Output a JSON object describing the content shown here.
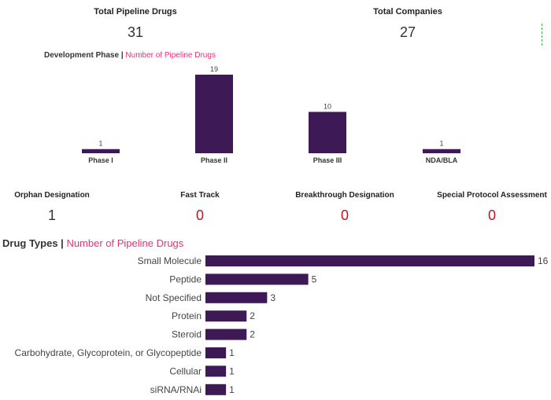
{
  "summary": {
    "total_pipeline_drugs": {
      "label": "Total Pipeline Drugs",
      "value": "31"
    },
    "total_companies": {
      "label": "Total Companies",
      "value": "27"
    }
  },
  "designations": [
    {
      "label": "Orphan Designation",
      "value": "1",
      "color": "#333333"
    },
    {
      "label": "Fast Track",
      "value": "0",
      "color": "#c0141e"
    },
    {
      "label": "Breakthrough Designation",
      "value": "0",
      "color": "#c0141e"
    },
    {
      "label": "Special Protocol Assessment",
      "value": "0",
      "color": "#c0141e"
    }
  ],
  "colors": {
    "bar": "#3d1a55",
    "accent": "#e6317a"
  },
  "chart_data": [
    {
      "type": "bar",
      "title": "Development Phase",
      "subtitle": "Number of Pipeline Drugs",
      "categories": [
        "Phase I",
        "Phase II",
        "Phase III",
        "NDA/BLA"
      ],
      "values": [
        1,
        19,
        10,
        1
      ],
      "ylim": [
        0,
        19
      ],
      "xlabel": "",
      "ylabel": ""
    },
    {
      "type": "bar",
      "orientation": "horizontal",
      "title": "Drug Types",
      "subtitle": "Number of Pipeline Drugs",
      "categories": [
        "Small Molecule",
        "Peptide",
        "Not Specified",
        "Protein",
        "Steroid",
        "Carbohydrate, Glycoprotein, or Glycopeptide",
        "Cellular",
        "siRNA/RNAi"
      ],
      "values": [
        16,
        5,
        3,
        2,
        2,
        1,
        1,
        1
      ],
      "xlim": [
        0,
        16
      ],
      "xlabel": "",
      "ylabel": ""
    }
  ]
}
